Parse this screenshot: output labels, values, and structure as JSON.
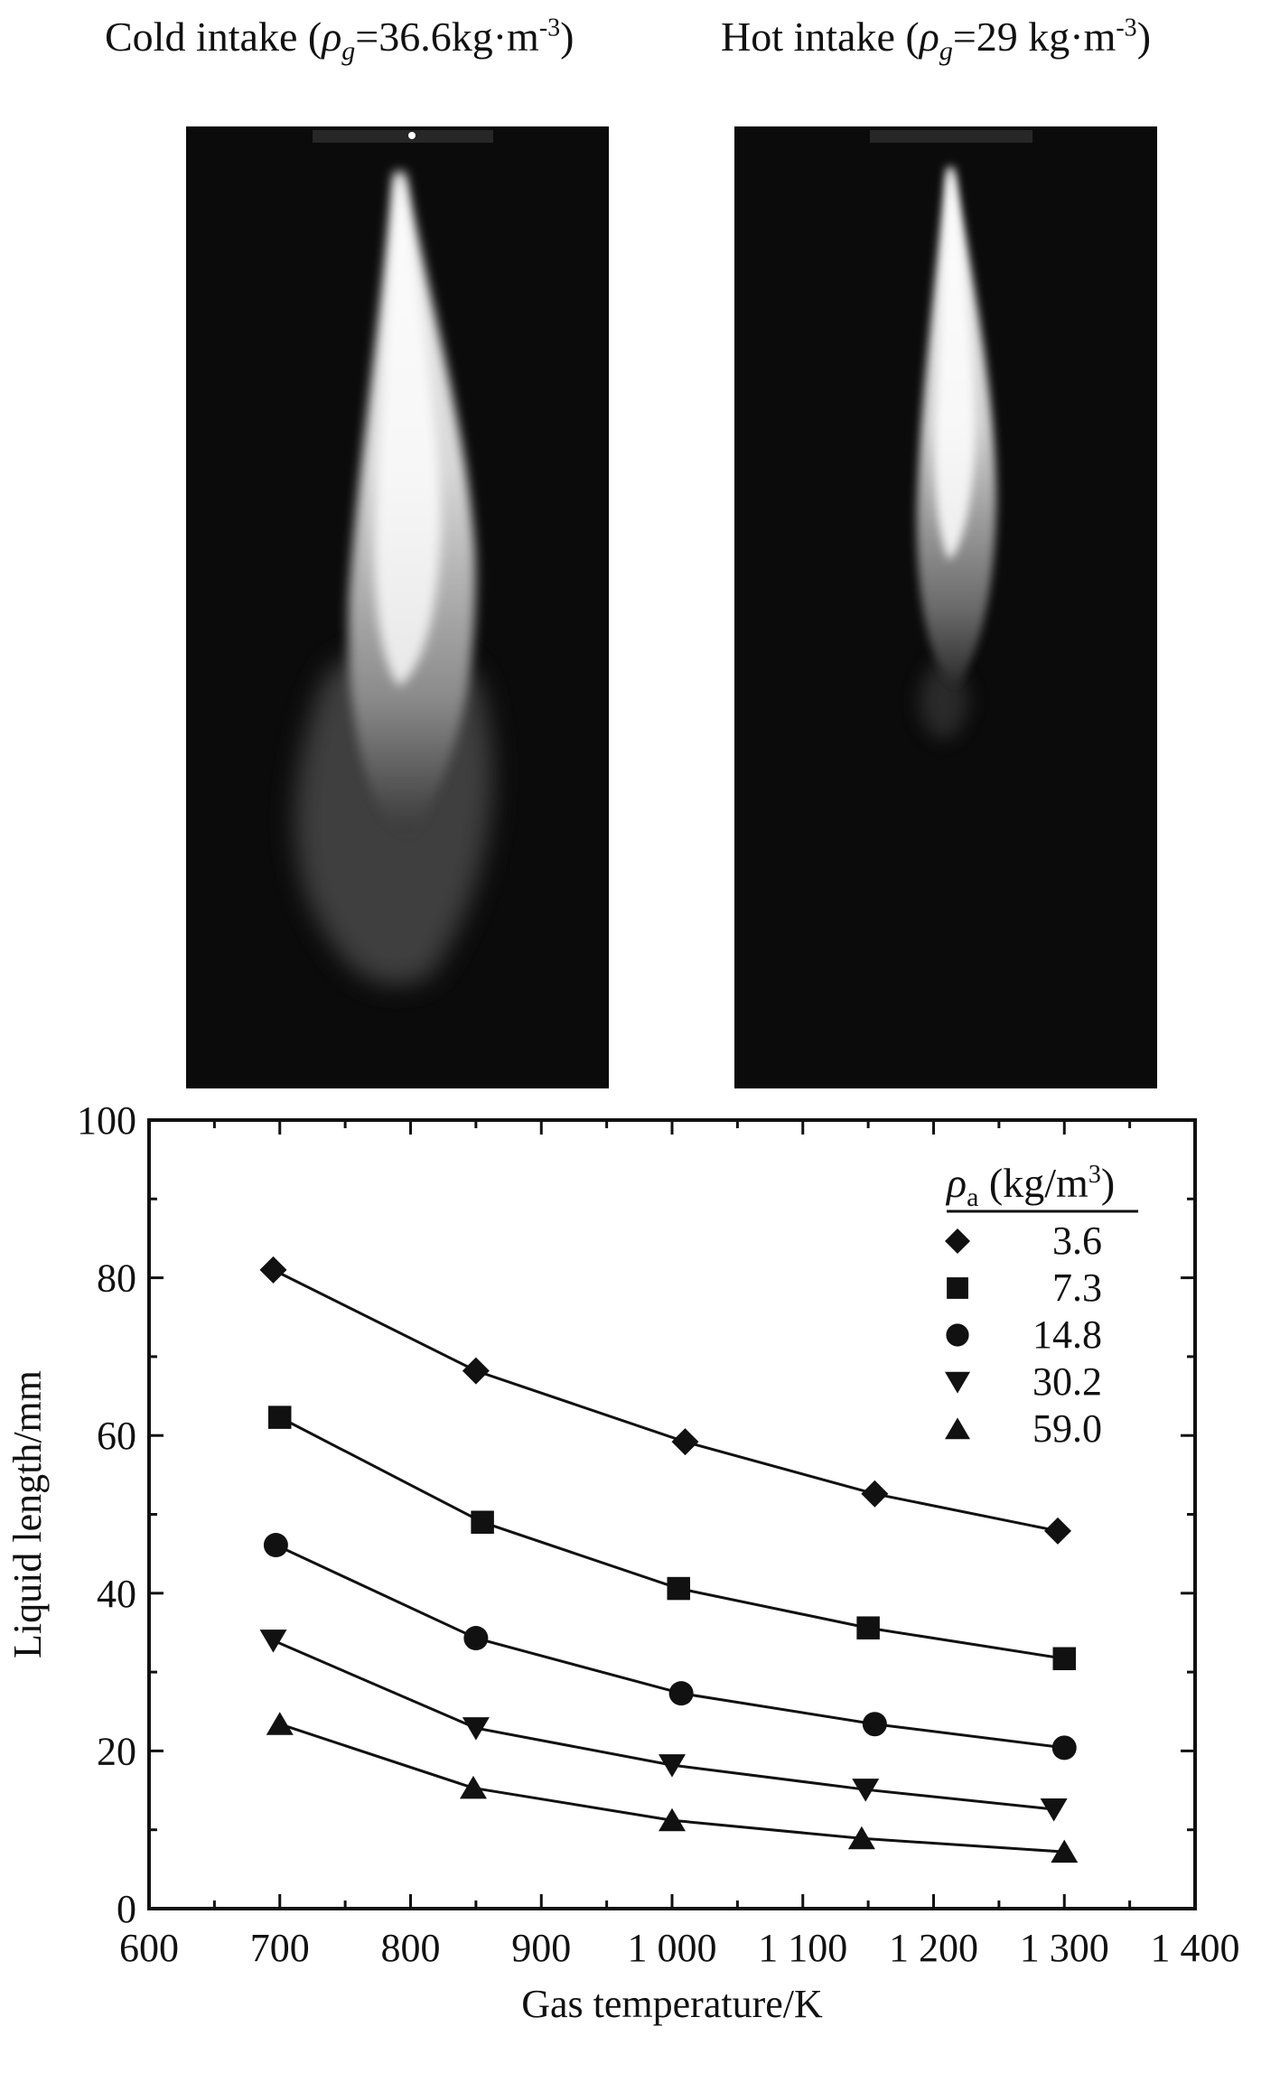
{
  "captions": {
    "cold": {
      "prefix": "Cold intake (",
      "symbol": "ρ",
      "sub": "g",
      "value": "=36.6kg·m",
      "exp": "-3",
      "suffix": ")"
    },
    "hot": {
      "prefix": "Hot intake (",
      "symbol": "ρ",
      "sub": "g",
      "value": "=29 kg·m",
      "exp": "-3",
      "suffix": ")"
    }
  },
  "chart_data": {
    "type": "line",
    "xlabel": "Gas temperature/K",
    "ylabel": "Liquid length/mm",
    "xlim": [
      600,
      1400
    ],
    "ylim": [
      0,
      100
    ],
    "xticks": [
      600,
      700,
      800,
      900,
      1000,
      1100,
      1200,
      1300,
      1400
    ],
    "xtick_labels": [
      "600",
      "700",
      "800",
      "900",
      "1 000",
      "1 100",
      "1 200",
      "1 300",
      "1 400"
    ],
    "yticks": [
      0,
      20,
      40,
      60,
      80,
      100
    ],
    "ytick_labels": [
      "0",
      "20",
      "40",
      "60",
      "80",
      "100"
    ],
    "grid": false,
    "legend": {
      "title_symbol": "ρ",
      "title_sub": "a",
      "title_unit": " (kg/m",
      "title_exp": "3",
      "title_close": ")",
      "placement": "top-right"
    },
    "series": [
      {
        "name": "3.6",
        "marker": "diamond",
        "x": [
          695,
          850,
          1010,
          1155,
          1295
        ],
        "y": [
          81.0,
          68.2,
          59.2,
          52.6,
          47.9
        ]
      },
      {
        "name": "7.3",
        "marker": "square",
        "x": [
          700,
          855,
          1005,
          1150,
          1300
        ],
        "y": [
          62.3,
          49.0,
          40.6,
          35.6,
          31.7
        ]
      },
      {
        "name": "14.8",
        "marker": "circle",
        "x": [
          697,
          850,
          1007,
          1155,
          1300
        ],
        "y": [
          46.1,
          34.3,
          27.3,
          23.4,
          20.4
        ]
      },
      {
        "name": "30.2",
        "marker": "triangle-down",
        "x": [
          695,
          850,
          1000,
          1148,
          1292
        ],
        "y": [
          34.0,
          22.9,
          18.2,
          15.1,
          12.6
        ]
      },
      {
        "name": "59.0",
        "marker": "triangle-up",
        "x": [
          700,
          848,
          1000,
          1145,
          1300
        ],
        "y": [
          23.4,
          15.3,
          11.2,
          8.9,
          7.2
        ]
      }
    ]
  }
}
